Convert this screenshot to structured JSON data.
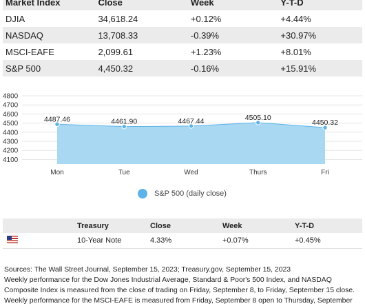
{
  "market": {
    "headers": [
      "Market Index",
      "Close",
      "Week",
      "Y-T-D"
    ],
    "rows": [
      [
        "DJIA",
        "34,618.24",
        "+0.12%",
        "+4.44%"
      ],
      [
        "NASDAQ",
        "13,708.33",
        "-0.39%",
        "+30.97%"
      ],
      [
        "MSCI-EAFE",
        "2,099.61",
        "+1.23%",
        "+8.01%"
      ],
      [
        "S&P 500",
        "4,450.32",
        "-0.16%",
        "+15.91%"
      ]
    ]
  },
  "chart_data": {
    "type": "area",
    "categories": [
      "Mon",
      "Tue",
      "Wed",
      "Thurs",
      "Fri"
    ],
    "series": [
      {
        "name": "S&P 500 (daily close)",
        "values": [
          4487.46,
          4461.9,
          4467.44,
          4505.1,
          4450.32
        ]
      }
    ],
    "data_labels": [
      "4487.46",
      "4461.90",
      "4467.44",
      "4505.10",
      "4450.32"
    ],
    "y_ticks": [
      4100,
      4200,
      4300,
      4400,
      4500,
      4600,
      4700,
      4800
    ],
    "ylim": [
      4050,
      4800
    ],
    "grid": true,
    "legend": "bottom",
    "colors": {
      "fill": "#a9d8f3",
      "stroke": "#5db3e8",
      "point": "#5db3e8"
    }
  },
  "legend": {
    "label": "S&P 500 (daily close)"
  },
  "treasury": {
    "headers": [
      "Treasury",
      "Close",
      "Week",
      "Y-T-D"
    ],
    "row": {
      "flag": "us-flag-icon",
      "name": "10-Year Note",
      "close": "4.33%",
      "week": "+0.07%",
      "ytd": "+0.45%"
    }
  },
  "notes": [
    "Sources: The Wall Street Journal, September 15, 2023; Treasury.gov, September 15, 2023",
    "Weekly performance for the Dow Jones Industrial Average, Standard & Poor's 500 Index, and NASDAQ",
    "Composite Index is measured from the close of trading on Friday, September 8, to Friday, September 15 close.",
    "Weekly performance for the MSCI-EAFE is measured from Friday, September 8 open to Thursday, September"
  ]
}
